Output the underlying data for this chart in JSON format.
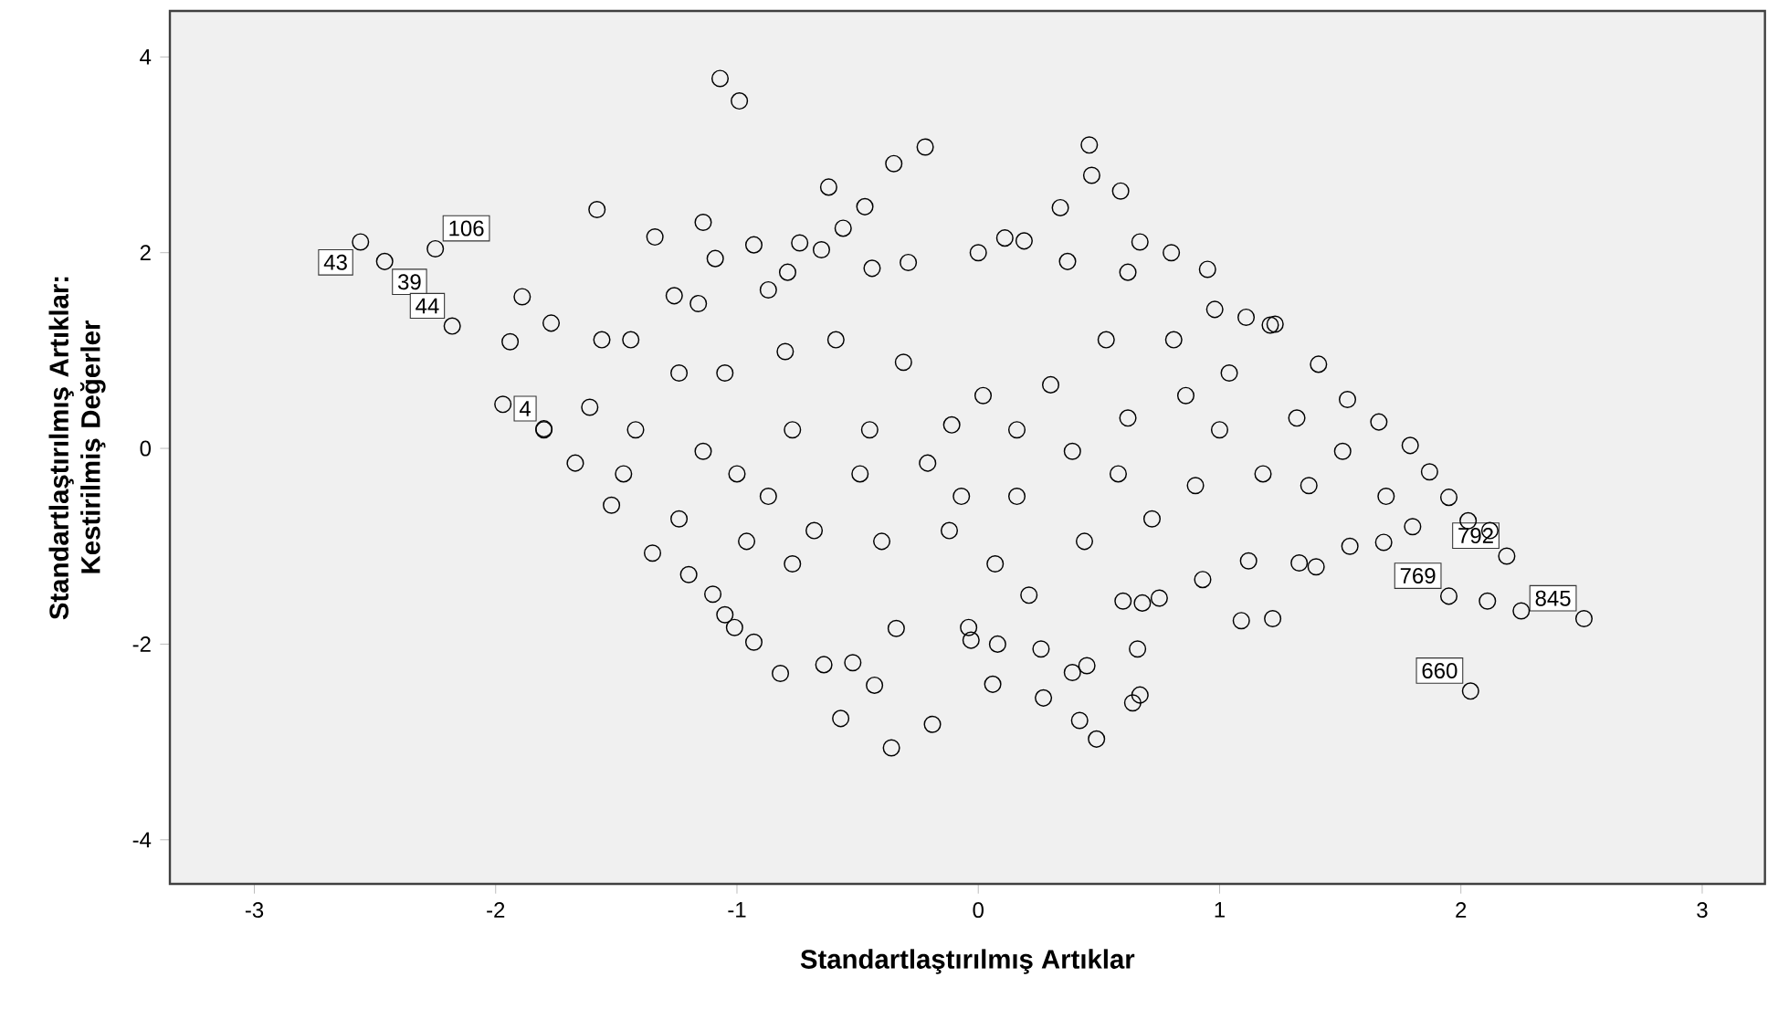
{
  "chart_data": {
    "type": "scatter",
    "xlabel": "Standartlaştırılmış Artıklar",
    "ylabel": "Standartlaştırılmış Artıklar: Kestirilmiş Değerler",
    "xlim": [
      -3.35,
      3.26
    ],
    "ylim": [
      -4.45,
      4.47
    ],
    "xticks": [
      -3,
      -2,
      -1,
      0,
      1,
      2,
      3
    ],
    "yticks": [
      -4,
      -2,
      0,
      2,
      4
    ],
    "marker": "circle",
    "color": "#000000",
    "x": [
      -2.56,
      -2.46,
      -2.25,
      -2.18,
      -1.8,
      1.95,
      2.19,
      2.04,
      2.51,
      2.11,
      2.25,
      -1.07,
      -0.99,
      -0.22,
      -0.35,
      0.46,
      0.47,
      0.59,
      0.34,
      -0.62,
      -0.47,
      -0.56,
      -1.58,
      -1.34,
      -1.14,
      -1.09,
      -0.93,
      -0.74,
      -0.65,
      -0.44,
      -0.29,
      0.0,
      0.11,
      0.19,
      0.67,
      0.8,
      0.95,
      1.11,
      1.21,
      -1.89,
      -1.77,
      -1.94,
      -1.97,
      -1.26,
      -1.16,
      -1.44,
      -1.56,
      -0.8,
      -0.87,
      -0.79,
      -0.11,
      -1.67,
      -1.52,
      -1.35,
      -1.2,
      -1.1,
      -1.05,
      -1.01,
      -0.93,
      -0.82,
      -0.64,
      -0.57,
      -0.52,
      -0.43,
      -0.36,
      -0.34,
      -0.19,
      -0.04,
      -0.03,
      0.06,
      0.08,
      0.26,
      0.27,
      0.39,
      0.45,
      0.42,
      0.49,
      0.64,
      0.67,
      0.66,
      0.6,
      0.75,
      0.68,
      0.21,
      0.93,
      1.09,
      1.22,
      1.33,
      1.4,
      1.12,
      1.54,
      1.68,
      1.8,
      1.95,
      1.87,
      1.79,
      1.66,
      1.53,
      1.41,
      1.23,
      0.98,
      2.03,
      2.12,
      -1.0,
      -1.05,
      -0.77,
      -0.49,
      -0.21,
      0.02,
      0.16,
      0.39,
      0.62,
      0.86,
      1.0,
      1.18,
      1.32,
      -1.24,
      -1.42,
      -0.68,
      -0.4,
      -0.12,
      0.44,
      0.72,
      0.58,
      0.3,
      0.53,
      0.81,
      -0.31,
      -0.59,
      -0.87,
      -1.14,
      -1.61,
      -1.8,
      -1.24,
      1.51,
      1.69,
      0.62,
      0.37,
      1.04,
      -0.45,
      0.16,
      -0.07,
      -0.77,
      0.07,
      0.9,
      1.37,
      -0.96,
      -1.47
    ],
    "values": [
      2.11,
      1.91,
      2.04,
      1.25,
      0.2,
      -1.51,
      -1.1,
      -2.48,
      -1.74,
      -1.56,
      -1.66,
      3.78,
      3.55,
      3.08,
      2.91,
      3.1,
      2.79,
      2.63,
      2.46,
      2.67,
      2.47,
      2.25,
      2.44,
      2.16,
      2.31,
      1.94,
      2.08,
      2.1,
      2.03,
      1.84,
      1.9,
      2.0,
      2.15,
      2.12,
      2.11,
      2.0,
      1.83,
      1.34,
      1.26,
      1.55,
      1.28,
      1.09,
      0.45,
      1.56,
      1.48,
      1.11,
      1.11,
      0.99,
      1.62,
      1.8,
      0.24,
      -0.15,
      -0.58,
      -1.07,
      -1.29,
      -1.49,
      -1.7,
      -1.83,
      -1.98,
      -2.3,
      -2.21,
      -2.76,
      -2.19,
      -2.42,
      -3.06,
      -1.84,
      -2.82,
      -1.83,
      -1.96,
      -2.41,
      -2.0,
      -2.05,
      -2.55,
      -2.29,
      -2.22,
      -2.78,
      -2.97,
      -2.6,
      -2.52,
      -2.05,
      -1.56,
      -1.53,
      -1.58,
      -1.5,
      -1.34,
      -1.76,
      -1.74,
      -1.17,
      -1.21,
      -1.15,
      -1.0,
      -0.96,
      -0.8,
      -0.5,
      -0.24,
      0.03,
      0.27,
      0.5,
      0.86,
      1.27,
      1.42,
      -0.74,
      -0.84,
      -0.26,
      0.77,
      0.19,
      -0.26,
      -0.15,
      0.54,
      -0.49,
      -0.03,
      0.31,
      0.54,
      0.19,
      -0.26,
      0.31,
      -0.72,
      0.19,
      -0.84,
      -0.95,
      -0.84,
      -0.95,
      -0.72,
      -0.26,
      0.65,
      1.11,
      1.11,
      0.88,
      1.11,
      -0.49,
      -0.03,
      0.42,
      0.19,
      0.77,
      -0.03,
      -0.49,
      1.8,
      1.91,
      0.77,
      0.19,
      0.19,
      -0.49,
      -1.18,
      -1.18,
      -0.38,
      -0.38,
      -0.95,
      -0.26
    ],
    "annotations": [
      {
        "text": "43",
        "x": -2.56,
        "y": 2.11
      },
      {
        "text": "39",
        "x": -2.46,
        "y": 1.91
      },
      {
        "text": "106",
        "x": -2.25,
        "y": 2.04
      },
      {
        "text": "44",
        "x": -2.18,
        "y": 1.25
      },
      {
        "text": "4",
        "x": -1.8,
        "y": 0.2
      },
      {
        "text": "769",
        "x": 1.95,
        "y": -1.51
      },
      {
        "text": "792",
        "x": 2.19,
        "y": -1.1
      },
      {
        "text": "660",
        "x": 2.04,
        "y": -2.48
      },
      {
        "text": "845",
        "x": 2.51,
        "y": -1.74
      }
    ]
  }
}
